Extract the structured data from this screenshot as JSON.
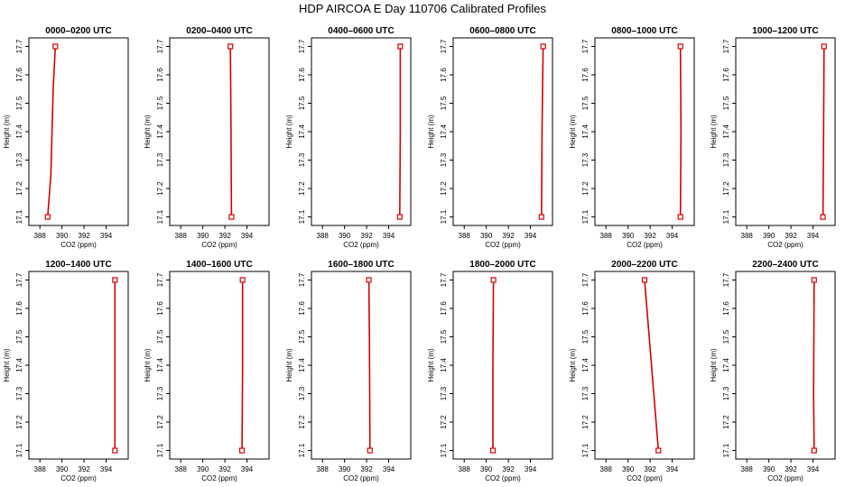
{
  "figure": {
    "title": "HDP AIRCOA E  Day 110706  Calibrated Profiles"
  },
  "colors": {
    "series": "#d40000",
    "axes": "#000000"
  },
  "chart_data": [
    {
      "type": "line",
      "title": "0000–0200 UTC",
      "xlabel": "CO2 (ppm)",
      "ylabel": "Height (m)",
      "xlim": [
        387,
        396
      ],
      "ylim": [
        17.07,
        17.73
      ],
      "xticks": [
        "388",
        "390",
        "392",
        "394"
      ],
      "yticks": [
        "17.1",
        "17.2",
        "17.3",
        "17.4",
        "17.5",
        "17.6",
        "17.7"
      ],
      "grid": false,
      "series": [
        {
          "x": [
            388.7,
            389.0,
            389.2,
            389.4
          ],
          "y": [
            17.1,
            17.25,
            17.55,
            17.7
          ]
        }
      ]
    },
    {
      "type": "line",
      "title": "0200–0400 UTC",
      "xlabel": "CO2 (ppm)",
      "ylabel": "Height (m)",
      "xlim": [
        387,
        396
      ],
      "ylim": [
        17.07,
        17.73
      ],
      "xticks": [
        "388",
        "390",
        "392",
        "394"
      ],
      "yticks": [
        "17.1",
        "17.2",
        "17.3",
        "17.4",
        "17.5",
        "17.6",
        "17.7"
      ],
      "grid": false,
      "series": [
        {
          "x": [
            392.6,
            392.55,
            392.5
          ],
          "y": [
            17.1,
            17.45,
            17.7
          ]
        }
      ]
    },
    {
      "type": "line",
      "title": "0400–0600 UTC",
      "xlabel": "CO2 (ppm)",
      "ylabel": "Height (m)",
      "xlim": [
        387,
        396
      ],
      "ylim": [
        17.07,
        17.73
      ],
      "xticks": [
        "388",
        "390",
        "392",
        "394"
      ],
      "yticks": [
        "17.1",
        "17.2",
        "17.3",
        "17.4",
        "17.5",
        "17.6",
        "17.7"
      ],
      "grid": false,
      "series": [
        {
          "x": [
            395.0,
            395.05,
            395.05
          ],
          "y": [
            17.1,
            17.4,
            17.7
          ]
        }
      ]
    },
    {
      "type": "line",
      "title": "0600–0800 UTC",
      "xlabel": "CO2 (ppm)",
      "ylabel": "Height (m)",
      "xlim": [
        387,
        396
      ],
      "ylim": [
        17.07,
        17.73
      ],
      "xticks": [
        "388",
        "390",
        "392",
        "394"
      ],
      "yticks": [
        "17.1",
        "17.2",
        "17.3",
        "17.4",
        "17.5",
        "17.6",
        "17.7"
      ],
      "grid": false,
      "series": [
        {
          "x": [
            395.0,
            395.05,
            395.15
          ],
          "y": [
            17.1,
            17.4,
            17.7
          ]
        }
      ]
    },
    {
      "type": "line",
      "title": "0800–1000 UTC",
      "xlabel": "CO2 (ppm)",
      "ylabel": "Height (m)",
      "xlim": [
        387,
        396
      ],
      "ylim": [
        17.07,
        17.73
      ],
      "xticks": [
        "388",
        "390",
        "392",
        "394"
      ],
      "yticks": [
        "17.1",
        "17.2",
        "17.3",
        "17.4",
        "17.5",
        "17.6",
        "17.7"
      ],
      "grid": false,
      "series": [
        {
          "x": [
            394.75,
            394.8,
            394.75
          ],
          "y": [
            17.1,
            17.4,
            17.7
          ]
        }
      ]
    },
    {
      "type": "line",
      "title": "1000–1200 UTC",
      "xlabel": "CO2 (ppm)",
      "ylabel": "Height (m)",
      "xlim": [
        387,
        396
      ],
      "ylim": [
        17.07,
        17.73
      ],
      "xticks": [
        "388",
        "390",
        "392",
        "394"
      ],
      "yticks": [
        "17.1",
        "17.2",
        "17.3",
        "17.4",
        "17.5",
        "17.6",
        "17.7"
      ],
      "grid": false,
      "series": [
        {
          "x": [
            394.9,
            394.95,
            395.0
          ],
          "y": [
            17.1,
            17.35,
            17.7
          ]
        }
      ]
    },
    {
      "type": "line",
      "title": "1200–1400 UTC",
      "xlabel": "CO2 (ppm)",
      "ylabel": "Height (m)",
      "xlim": [
        387,
        396
      ],
      "ylim": [
        17.07,
        17.73
      ],
      "xticks": [
        "388",
        "390",
        "392",
        "394"
      ],
      "yticks": [
        "17.1",
        "17.2",
        "17.3",
        "17.4",
        "17.5",
        "17.6",
        "17.7"
      ],
      "grid": false,
      "series": [
        {
          "x": [
            394.8,
            394.8,
            394.8
          ],
          "y": [
            17.1,
            17.4,
            17.7
          ]
        }
      ]
    },
    {
      "type": "line",
      "title": "1400–1600 UTC",
      "xlabel": "CO2 (ppm)",
      "ylabel": "Height (m)",
      "xlim": [
        387,
        396
      ],
      "ylim": [
        17.07,
        17.73
      ],
      "xticks": [
        "388",
        "390",
        "392",
        "394"
      ],
      "yticks": [
        "17.1",
        "17.2",
        "17.3",
        "17.4",
        "17.5",
        "17.6",
        "17.7"
      ],
      "grid": false,
      "series": [
        {
          "x": [
            393.55,
            393.6,
            393.6
          ],
          "y": [
            17.1,
            17.4,
            17.7
          ]
        }
      ]
    },
    {
      "type": "line",
      "title": "1600–1800 UTC",
      "xlabel": "CO2 (ppm)",
      "ylabel": "Height (m)",
      "xlim": [
        387,
        396
      ],
      "ylim": [
        17.07,
        17.73
      ],
      "xticks": [
        "388",
        "390",
        "392",
        "394"
      ],
      "yticks": [
        "17.1",
        "17.2",
        "17.3",
        "17.4",
        "17.5",
        "17.6",
        "17.7"
      ],
      "grid": false,
      "series": [
        {
          "x": [
            392.3,
            392.25,
            392.2
          ],
          "y": [
            17.1,
            17.5,
            17.7
          ]
        }
      ]
    },
    {
      "type": "line",
      "title": "1800–2000 UTC",
      "xlabel": "CO2 (ppm)",
      "ylabel": "Height (m)",
      "xlim": [
        387,
        396
      ],
      "ylim": [
        17.07,
        17.73
      ],
      "xticks": [
        "388",
        "390",
        "392",
        "394"
      ],
      "yticks": [
        "17.1",
        "17.2",
        "17.3",
        "17.4",
        "17.5",
        "17.6",
        "17.7"
      ],
      "grid": false,
      "series": [
        {
          "x": [
            390.6,
            390.6,
            390.65
          ],
          "y": [
            17.1,
            17.4,
            17.7
          ]
        }
      ]
    },
    {
      "type": "line",
      "title": "2000–2200 UTC",
      "xlabel": "CO2 (ppm)",
      "ylabel": "Height (m)",
      "xlim": [
        387,
        396
      ],
      "ylim": [
        17.07,
        17.73
      ],
      "xticks": [
        "388",
        "390",
        "392",
        "394"
      ],
      "yticks": [
        "17.1",
        "17.2",
        "17.3",
        "17.4",
        "17.5",
        "17.6",
        "17.7"
      ],
      "grid": false,
      "series": [
        {
          "x": [
            392.75,
            391.5
          ],
          "y": [
            17.1,
            17.7
          ]
        }
      ]
    },
    {
      "type": "line",
      "title": "2200–2400 UTC",
      "xlabel": "CO2 (ppm)",
      "ylabel": "Height (m)",
      "xlim": [
        387,
        396
      ],
      "ylim": [
        17.07,
        17.73
      ],
      "xticks": [
        "388",
        "390",
        "392",
        "394"
      ],
      "yticks": [
        "17.1",
        "17.2",
        "17.3",
        "17.4",
        "17.5",
        "17.6",
        "17.7"
      ],
      "grid": false,
      "series": [
        {
          "x": [
            394.1,
            394.05,
            394.1
          ],
          "y": [
            17.1,
            17.3,
            17.7
          ]
        }
      ]
    }
  ]
}
